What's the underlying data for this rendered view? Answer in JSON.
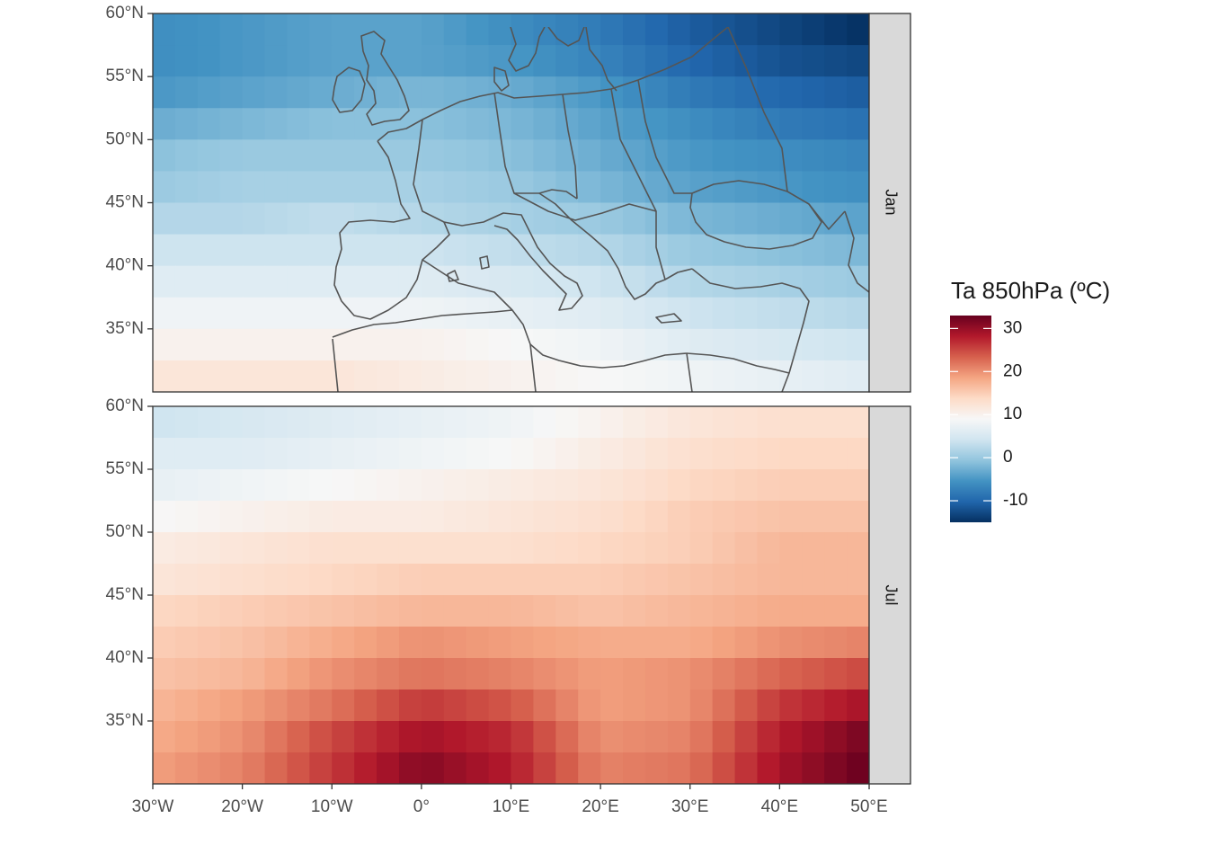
{
  "legend": {
    "title": "Ta 850hPa (ºC)",
    "ticks": [
      30,
      20,
      10,
      0,
      -10
    ],
    "tick_labels": [
      "30",
      "20",
      "10",
      "0",
      "-10"
    ],
    "range": [
      -15,
      33
    ],
    "palette": [
      "#053061",
      "#2166ac",
      "#4393c3",
      "#92c5de",
      "#d1e5f0",
      "#f7f7f7",
      "#fddbc7",
      "#f4a582",
      "#d6604d",
      "#b2182b",
      "#67001f"
    ]
  },
  "x_axis": {
    "ticks": [
      -30,
      -20,
      -10,
      0,
      10,
      20,
      30,
      40,
      50
    ],
    "labels": [
      "30°W",
      "20°W",
      "10°W",
      "0°",
      "10°E",
      "20°E",
      "30°E",
      "40°E",
      "50°E"
    ]
  },
  "y_axis": {
    "ticks": [
      35,
      40,
      45,
      50,
      55,
      60
    ],
    "labels": [
      "35°N",
      "40°N",
      "45°N",
      "50°N",
      "55°N",
      "60°N"
    ]
  },
  "panels": [
    {
      "strip": "Jan"
    },
    {
      "strip": "Jul"
    }
  ],
  "chart_data": {
    "type": "heatmap",
    "variable": "Ta 850hPa (ºC)",
    "lon_range": [
      -30,
      50
    ],
    "lat_range": [
      30,
      60
    ],
    "grid_spacing_deg": 2.5,
    "facets": [
      {
        "panel": "Jan",
        "lat_rows": [
          58.75,
          56.25,
          53.75,
          51.25,
          48.75,
          46.25,
          43.75,
          41.25,
          38.75,
          36.25,
          33.75,
          31.25
        ],
        "lon_knots": [
          -30,
          -20,
          -10,
          0,
          10,
          20,
          30,
          40,
          50
        ],
        "values": [
          [
            -6,
            -5,
            -4,
            -4,
            -6,
            -8,
            -11,
            -13,
            -15
          ],
          [
            -6,
            -5,
            -4,
            -4,
            -5,
            -7,
            -10,
            -12,
            -13
          ],
          [
            -5,
            -4,
            -3,
            -2,
            -3,
            -5,
            -8,
            -10,
            -11
          ],
          [
            -3,
            -2,
            -1,
            -1,
            -2,
            -4,
            -6,
            -8,
            -9
          ],
          [
            -1,
            0,
            0,
            0,
            -1,
            -3,
            -5,
            -6,
            -7
          ],
          [
            0,
            1,
            1,
            1,
            0,
            -2,
            -4,
            -5,
            -6
          ],
          [
            2,
            2,
            3,
            2,
            1,
            0,
            -2,
            -3,
            -4
          ],
          [
            4,
            4,
            4,
            4,
            3,
            2,
            0,
            -1,
            -2
          ],
          [
            6,
            6,
            6,
            6,
            5,
            4,
            2,
            1,
            0
          ],
          [
            8,
            8,
            8,
            8,
            7,
            6,
            4,
            3,
            2
          ],
          [
            10,
            10,
            10,
            10,
            9,
            8,
            6,
            5,
            4
          ],
          [
            12,
            12,
            12,
            11,
            10,
            9,
            8,
            7,
            6
          ]
        ]
      },
      {
        "panel": "Jul",
        "lat_rows": [
          58.75,
          56.25,
          53.75,
          51.25,
          48.75,
          46.25,
          43.75,
          41.25,
          38.75,
          36.25,
          33.75,
          31.25
        ],
        "lon_knots": [
          -30,
          -20,
          -10,
          0,
          10,
          20,
          30,
          40,
          50
        ],
        "values": [
          [
            4,
            5,
            6,
            7,
            8,
            10,
            12,
            13,
            13
          ],
          [
            6,
            6,
            7,
            8,
            9,
            11,
            13,
            14,
            14
          ],
          [
            7,
            8,
            9,
            10,
            11,
            12,
            14,
            15,
            15
          ],
          [
            9,
            10,
            11,
            11,
            12,
            13,
            15,
            16,
            16
          ],
          [
            11,
            12,
            13,
            13,
            13,
            14,
            15,
            17,
            17
          ],
          [
            12,
            13,
            14,
            15,
            15,
            15,
            16,
            17,
            17
          ],
          [
            14,
            15,
            16,
            17,
            17,
            16,
            17,
            18,
            18
          ],
          [
            15,
            16,
            18,
            20,
            19,
            18,
            18,
            20,
            21
          ],
          [
            16,
            17,
            20,
            22,
            21,
            19,
            20,
            23,
            25
          ],
          [
            17,
            19,
            22,
            26,
            24,
            19,
            20,
            26,
            29
          ],
          [
            18,
            20,
            25,
            29,
            27,
            20,
            21,
            28,
            32
          ],
          [
            19,
            21,
            26,
            31,
            28,
            21,
            22,
            29,
            33
          ]
        ]
      }
    ]
  }
}
